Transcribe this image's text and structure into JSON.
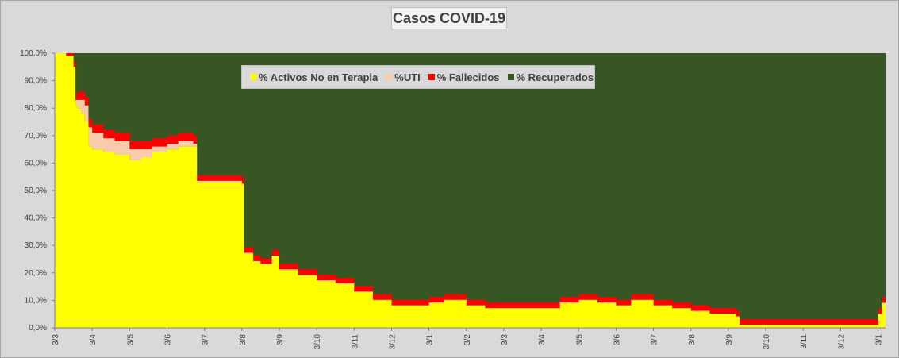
{
  "title": "Casos COVID-19",
  "legend": [
    {
      "label": "% Activos No en Terapia",
      "color": "#ffff00"
    },
    {
      "label": "%UTI",
      "color": "#f8cbad"
    },
    {
      "label": "% Fallecidos",
      "color": "#ff0000"
    },
    {
      "label": "% Recuperados",
      "color": "#375623"
    }
  ],
  "chart_data": {
    "type": "area",
    "stacked": true,
    "title": "Casos COVID-19",
    "ylim": [
      0,
      100
    ],
    "y_ticks": [
      "0,0%",
      "10,0%",
      "20,0%",
      "30,0%",
      "40,0%",
      "50,0%",
      "60,0%",
      "70,0%",
      "80,0%",
      "90,0%",
      "100,0%"
    ],
    "x_ticks": [
      "3/3",
      "3/4",
      "3/5",
      "3/6",
      "3/7",
      "3/8",
      "3/9",
      "3/10",
      "3/11",
      "3/12",
      "3/1",
      "3/2",
      "3/3",
      "3/4",
      "3/5",
      "3/6",
      "3/7",
      "3/8",
      "3/9",
      "3/10",
      "3/11",
      "3/12",
      "3/1"
    ],
    "x_index": [
      0,
      0.3,
      0.5,
      0.55,
      0.6,
      0.7,
      0.8,
      0.9,
      1.0,
      1.3,
      1.6,
      2.0,
      2.3,
      2.6,
      3.0,
      3.3,
      3.7,
      3.8,
      4.0,
      4.1,
      5.0,
      5.05,
      5.3,
      5.5,
      5.8,
      6.0,
      6.5,
      7.0,
      7.5,
      8.0,
      8.5,
      9.0,
      9.5,
      10.0,
      10.4,
      11.0,
      11.5,
      12.0,
      12.5,
      13.0,
      13.5,
      14.0,
      14.5,
      15.0,
      15.4,
      16.0,
      16.5,
      17.0,
      17.5,
      18.0,
      18.2,
      18.3,
      19.0,
      20.0,
      21.0,
      21.5,
      21.8,
      22.0,
      22.1
    ],
    "series": [
      {
        "name": "% Activos No en Terapia",
        "values": [
          100,
          99,
          95,
          81,
          80,
          78,
          75,
          66,
          65,
          64,
          63,
          61,
          62,
          64,
          65,
          66,
          66,
          53,
          53,
          53,
          52,
          27,
          24,
          23,
          26,
          21,
          19,
          17,
          16,
          13,
          10,
          8,
          8,
          9,
          10,
          8,
          7,
          7,
          7,
          7,
          9,
          10,
          9,
          8,
          10,
          8,
          7,
          6,
          5,
          5,
          4,
          1,
          1,
          1,
          1,
          1,
          1,
          5,
          9
        ]
      },
      {
        "name": "%UTI",
        "values": [
          0,
          0,
          0,
          2,
          3,
          5,
          6,
          7,
          6,
          5,
          5,
          4,
          3,
          2,
          2,
          2,
          1,
          0.5,
          0.5,
          0.5,
          0.5,
          0.3,
          0.3,
          0.3,
          0.3,
          0.3,
          0.3,
          0.3,
          0.2,
          0.2,
          0.2,
          0.2,
          0.2,
          0.2,
          0.2,
          0.2,
          0.2,
          0.2,
          0.2,
          0.2,
          0.2,
          0.2,
          0.2,
          0.2,
          0.2,
          0.2,
          0.2,
          0.2,
          0.2,
          0.2,
          0.2,
          0.1,
          0.1,
          0.1,
          0.1,
          0.1,
          0.1,
          0.1,
          0.1
        ]
      },
      {
        "name": "% Fallecidos",
        "values": [
          0,
          1,
          2,
          2,
          3,
          3,
          3,
          3,
          3,
          3,
          3,
          3,
          3,
          3,
          3,
          3,
          3,
          2,
          2,
          2,
          2,
          2,
          2,
          2,
          2,
          2,
          2,
          2,
          2,
          2,
          2,
          2,
          2,
          2,
          2,
          2,
          2,
          2,
          2,
          2,
          2,
          2,
          2,
          2,
          2,
          2,
          2,
          2,
          2,
          2,
          2,
          2,
          2,
          2,
          2,
          2,
          2,
          2,
          2
        ]
      }
    ]
  }
}
